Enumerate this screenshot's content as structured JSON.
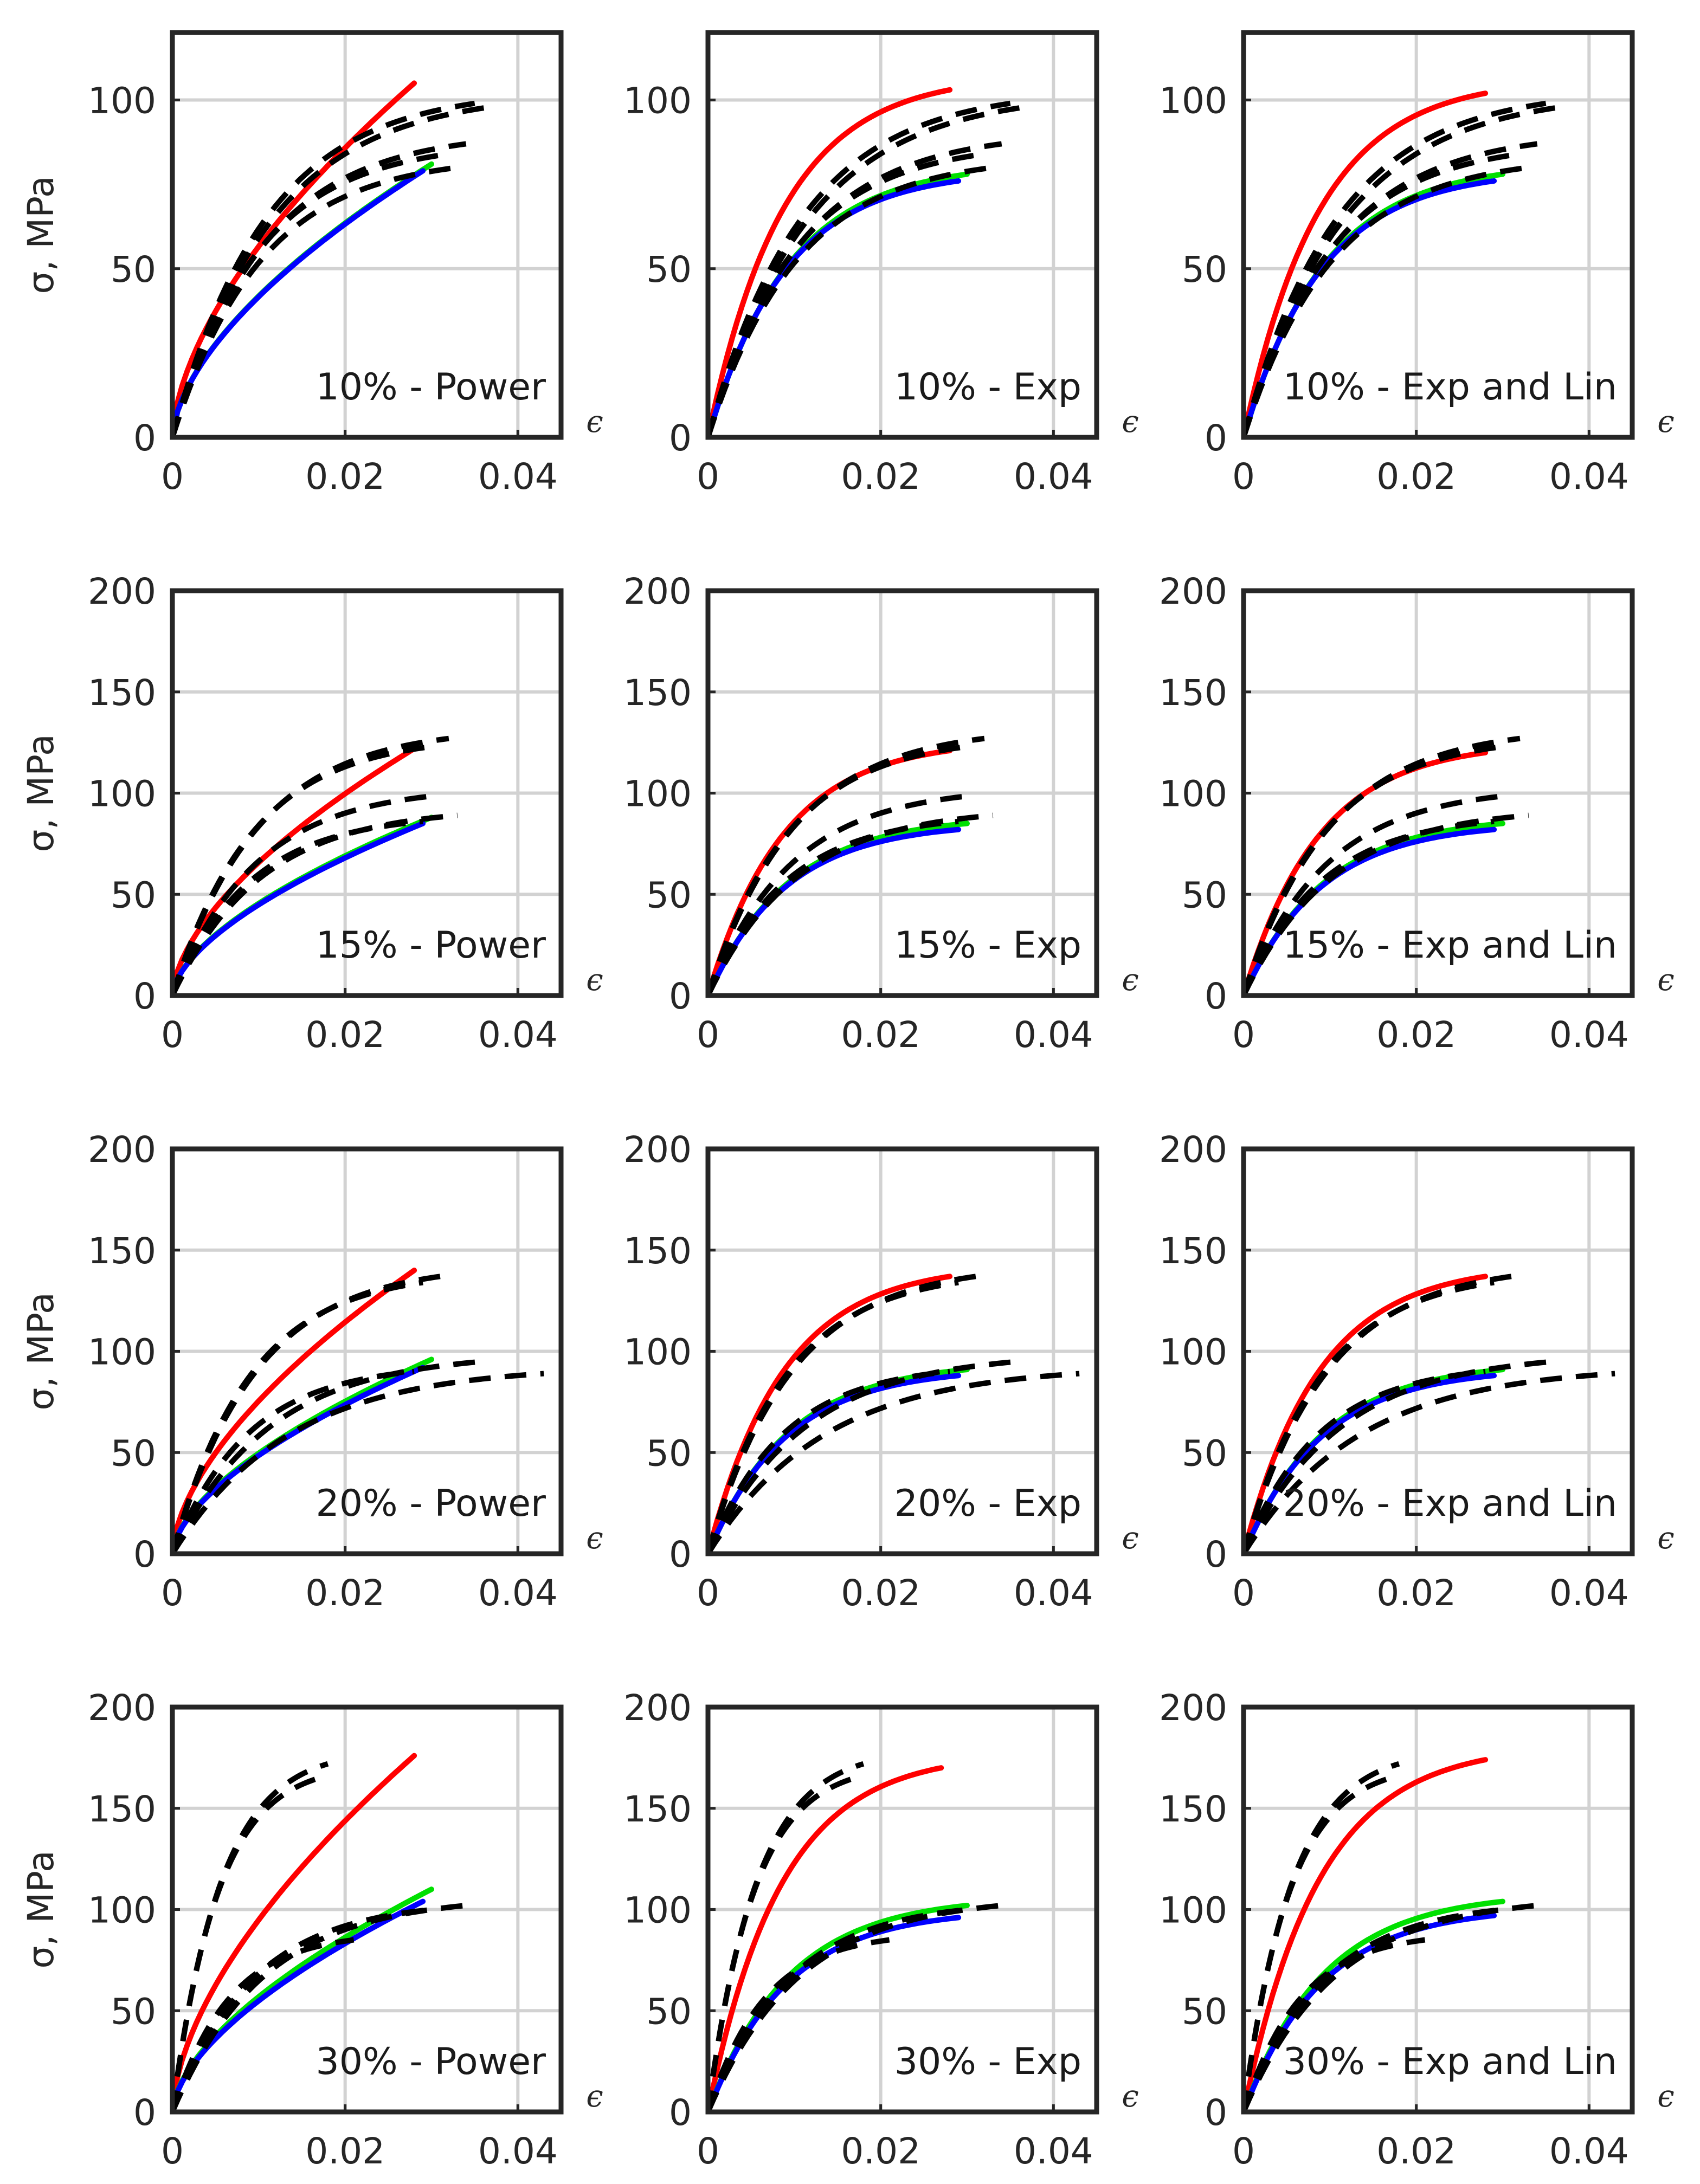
{
  "colors": {
    "red_series": "#ff0000",
    "green_series": "#00e000",
    "blue_series": "#0000ff",
    "experimental": "#000000",
    "axes": "#262626",
    "grid": "#d2d2d2"
  },
  "chart_data": [
    {
      "type": "line",
      "row": 0,
      "col": 0,
      "annotation": "10% - Power",
      "xlabel": "ϵ",
      "ylabel": "σ, MPa",
      "xlim": [
        0,
        0.045
      ],
      "ylim": [
        0,
        120
      ],
      "xticks": [
        0,
        0.02,
        0.04
      ],
      "xtick_labels": [
        "0",
        "0.02",
        "0.04"
      ],
      "yticks": [
        0,
        50,
        100
      ],
      "ytick_labels": [
        "0",
        "50",
        "100"
      ],
      "grid": true,
      "series": [
        {
          "name": "red",
          "model": "power",
          "xmax": 0.028,
          "ymax": 105
        },
        {
          "name": "green",
          "model": "power",
          "xmax": 0.03,
          "ymax": 81
        },
        {
          "name": "blue",
          "model": "power",
          "xmax": 0.029,
          "ymax": 79
        },
        {
          "name": "experimental",
          "model": "exp",
          "xmax": 0.035,
          "ymax": 99
        },
        {
          "name": "experimental",
          "model": "exp",
          "xmax": 0.037,
          "ymax": 98
        },
        {
          "name": "experimental",
          "model": "exp",
          "xmax": 0.034,
          "ymax": 87
        },
        {
          "name": "experimental",
          "model": "exp",
          "xmax": 0.032,
          "ymax": 84
        },
        {
          "name": "experimental",
          "model": "exp",
          "xmax": 0.033,
          "ymax": 80
        }
      ]
    },
    {
      "type": "line",
      "row": 0,
      "col": 1,
      "annotation": "10% - Exp",
      "xlabel": "ϵ",
      "ylabel": "",
      "xlim": [
        0,
        0.045
      ],
      "ylim": [
        0,
        120
      ],
      "xticks": [
        0,
        0.02,
        0.04
      ],
      "xtick_labels": [
        "0",
        "0.02",
        "0.04"
      ],
      "yticks": [
        0,
        50,
        100
      ],
      "ytick_labels": [
        "0",
        "50",
        "100"
      ],
      "grid": true,
      "series": [
        {
          "name": "red",
          "model": "exp",
          "xmax": 0.028,
          "ymax": 103
        },
        {
          "name": "green",
          "model": "exp",
          "xmax": 0.03,
          "ymax": 78
        },
        {
          "name": "blue",
          "model": "exp",
          "xmax": 0.029,
          "ymax": 76
        },
        {
          "name": "experimental",
          "model": "exp",
          "xmax": 0.035,
          "ymax": 99
        },
        {
          "name": "experimental",
          "model": "exp",
          "xmax": 0.037,
          "ymax": 98
        },
        {
          "name": "experimental",
          "model": "exp",
          "xmax": 0.034,
          "ymax": 87
        },
        {
          "name": "experimental",
          "model": "exp",
          "xmax": 0.032,
          "ymax": 84
        },
        {
          "name": "experimental",
          "model": "exp",
          "xmax": 0.033,
          "ymax": 80
        }
      ]
    },
    {
      "type": "line",
      "row": 0,
      "col": 2,
      "annotation": "10% - Exp and Lin",
      "xlabel": "ϵ",
      "ylabel": "",
      "xlim": [
        0,
        0.045
      ],
      "ylim": [
        0,
        120
      ],
      "xticks": [
        0,
        0.02,
        0.04
      ],
      "xtick_labels": [
        "0",
        "0.02",
        "0.04"
      ],
      "yticks": [
        0,
        50,
        100
      ],
      "ytick_labels": [
        "0",
        "50",
        "100"
      ],
      "grid": true,
      "series": [
        {
          "name": "red",
          "model": "exp",
          "xmax": 0.028,
          "ymax": 102
        },
        {
          "name": "green",
          "model": "exp",
          "xmax": 0.03,
          "ymax": 78
        },
        {
          "name": "blue",
          "model": "exp",
          "xmax": 0.029,
          "ymax": 76
        },
        {
          "name": "experimental",
          "model": "exp",
          "xmax": 0.035,
          "ymax": 99
        },
        {
          "name": "experimental",
          "model": "exp",
          "xmax": 0.037,
          "ymax": 98
        },
        {
          "name": "experimental",
          "model": "exp",
          "xmax": 0.034,
          "ymax": 87
        },
        {
          "name": "experimental",
          "model": "exp",
          "xmax": 0.032,
          "ymax": 84
        },
        {
          "name": "experimental",
          "model": "exp",
          "xmax": 0.033,
          "ymax": 80
        }
      ]
    },
    {
      "type": "line",
      "row": 1,
      "col": 0,
      "annotation": "15% - Power",
      "xlabel": "ϵ",
      "ylabel": "σ, MPa",
      "xlim": [
        0,
        0.045
      ],
      "ylim": [
        0,
        200
      ],
      "xticks": [
        0,
        0.02,
        0.04
      ],
      "xtick_labels": [
        "0",
        "0.02",
        "0.04"
      ],
      "yticks": [
        0,
        50,
        100,
        150,
        200
      ],
      "ytick_labels": [
        "0",
        "50",
        "100",
        "150",
        "200"
      ],
      "grid": true,
      "series": [
        {
          "name": "red",
          "model": "power",
          "xmax": 0.028,
          "ymax": 122
        },
        {
          "name": "green",
          "model": "power",
          "xmax": 0.03,
          "ymax": 88
        },
        {
          "name": "blue",
          "model": "power",
          "xmax": 0.029,
          "ymax": 85
        },
        {
          "name": "experimental",
          "model": "exp",
          "xmax": 0.032,
          "ymax": 127
        },
        {
          "name": "experimental",
          "model": "exp",
          "xmax": 0.03,
          "ymax": 123
        },
        {
          "name": "experimental",
          "model": "exp",
          "xmax": 0.031,
          "ymax": 99
        },
        {
          "name": "experimental",
          "model": "exp",
          "xmax": 0.033,
          "ymax": 89
        },
        {
          "name": "experimental",
          "model": "exp",
          "xmax": 0.029,
          "ymax": 86
        }
      ]
    },
    {
      "type": "line",
      "row": 1,
      "col": 1,
      "annotation": "15% - Exp",
      "xlabel": "ϵ",
      "ylabel": "",
      "xlim": [
        0,
        0.045
      ],
      "ylim": [
        0,
        200
      ],
      "xticks": [
        0,
        0.02,
        0.04
      ],
      "xtick_labels": [
        "0",
        "0.02",
        "0.04"
      ],
      "yticks": [
        0,
        50,
        100,
        150,
        200
      ],
      "ytick_labels": [
        "0",
        "50",
        "100",
        "150",
        "200"
      ],
      "grid": true,
      "series": [
        {
          "name": "red",
          "model": "exp",
          "xmax": 0.028,
          "ymax": 121
        },
        {
          "name": "green",
          "model": "exp",
          "xmax": 0.03,
          "ymax": 85
        },
        {
          "name": "blue",
          "model": "exp",
          "xmax": 0.029,
          "ymax": 82
        },
        {
          "name": "experimental",
          "model": "exp",
          "xmax": 0.032,
          "ymax": 127
        },
        {
          "name": "experimental",
          "model": "exp",
          "xmax": 0.03,
          "ymax": 123
        },
        {
          "name": "experimental",
          "model": "exp",
          "xmax": 0.031,
          "ymax": 99
        },
        {
          "name": "experimental",
          "model": "exp",
          "xmax": 0.033,
          "ymax": 89
        },
        {
          "name": "experimental",
          "model": "exp",
          "xmax": 0.029,
          "ymax": 86
        }
      ]
    },
    {
      "type": "line",
      "row": 1,
      "col": 2,
      "annotation": "15% - Exp and Lin",
      "xlabel": "ϵ",
      "ylabel": "",
      "xlim": [
        0,
        0.045
      ],
      "ylim": [
        0,
        200
      ],
      "xticks": [
        0,
        0.02,
        0.04
      ],
      "xtick_labels": [
        "0",
        "0.02",
        "0.04"
      ],
      "yticks": [
        0,
        50,
        100,
        150,
        200
      ],
      "ytick_labels": [
        "0",
        "50",
        "100",
        "150",
        "200"
      ],
      "grid": true,
      "series": [
        {
          "name": "red",
          "model": "exp",
          "xmax": 0.028,
          "ymax": 120
        },
        {
          "name": "green",
          "model": "exp",
          "xmax": 0.03,
          "ymax": 85
        },
        {
          "name": "blue",
          "model": "exp",
          "xmax": 0.029,
          "ymax": 82
        },
        {
          "name": "experimental",
          "model": "exp",
          "xmax": 0.032,
          "ymax": 127
        },
        {
          "name": "experimental",
          "model": "exp",
          "xmax": 0.03,
          "ymax": 123
        },
        {
          "name": "experimental",
          "model": "exp",
          "xmax": 0.031,
          "ymax": 99
        },
        {
          "name": "experimental",
          "model": "exp",
          "xmax": 0.033,
          "ymax": 89
        },
        {
          "name": "experimental",
          "model": "exp",
          "xmax": 0.029,
          "ymax": 86
        }
      ]
    },
    {
      "type": "line",
      "row": 2,
      "col": 0,
      "annotation": "20% - Power",
      "xlabel": "ϵ",
      "ylabel": "σ, MPa",
      "xlim": [
        0,
        0.045
      ],
      "ylim": [
        0,
        200
      ],
      "xticks": [
        0,
        0.02,
        0.04
      ],
      "xtick_labels": [
        "0",
        "0.02",
        "0.04"
      ],
      "yticks": [
        0,
        50,
        100,
        150,
        200
      ],
      "ytick_labels": [
        "0",
        "50",
        "100",
        "150",
        "200"
      ],
      "grid": true,
      "series": [
        {
          "name": "red",
          "model": "power",
          "xmax": 0.028,
          "ymax": 140
        },
        {
          "name": "green",
          "model": "power",
          "xmax": 0.03,
          "ymax": 96
        },
        {
          "name": "blue",
          "model": "power",
          "xmax": 0.029,
          "ymax": 92
        },
        {
          "name": "experimental",
          "model": "exp",
          "xmax": 0.031,
          "ymax": 137
        },
        {
          "name": "experimental",
          "model": "exp",
          "xmax": 0.029,
          "ymax": 134
        },
        {
          "name": "experimental",
          "model": "exp",
          "xmax": 0.036,
          "ymax": 95
        },
        {
          "name": "experimental",
          "model": "exp",
          "xmax": 0.043,
          "ymax": 89
        },
        {
          "name": "experimental",
          "model": "exp",
          "xmax": 0.028,
          "ymax": 90
        }
      ]
    },
    {
      "type": "line",
      "row": 2,
      "col": 1,
      "annotation": "20% - Exp",
      "xlabel": "ϵ",
      "ylabel": "",
      "xlim": [
        0,
        0.045
      ],
      "ylim": [
        0,
        200
      ],
      "xticks": [
        0,
        0.02,
        0.04
      ],
      "xtick_labels": [
        "0",
        "0.02",
        "0.04"
      ],
      "yticks": [
        0,
        50,
        100,
        150,
        200
      ],
      "ytick_labels": [
        "0",
        "50",
        "100",
        "150",
        "200"
      ],
      "grid": true,
      "series": [
        {
          "name": "red",
          "model": "exp",
          "xmax": 0.028,
          "ymax": 137
        },
        {
          "name": "green",
          "model": "exp",
          "xmax": 0.03,
          "ymax": 91
        },
        {
          "name": "blue",
          "model": "exp",
          "xmax": 0.029,
          "ymax": 88
        },
        {
          "name": "experimental",
          "model": "exp",
          "xmax": 0.031,
          "ymax": 137
        },
        {
          "name": "experimental",
          "model": "exp",
          "xmax": 0.029,
          "ymax": 134
        },
        {
          "name": "experimental",
          "model": "exp",
          "xmax": 0.036,
          "ymax": 95
        },
        {
          "name": "experimental",
          "model": "exp",
          "xmax": 0.043,
          "ymax": 89
        },
        {
          "name": "experimental",
          "model": "exp",
          "xmax": 0.028,
          "ymax": 90
        }
      ]
    },
    {
      "type": "line",
      "row": 2,
      "col": 2,
      "annotation": "20% - Exp and Lin",
      "xlabel": "ϵ",
      "ylabel": "",
      "xlim": [
        0,
        0.045
      ],
      "ylim": [
        0,
        200
      ],
      "xticks": [
        0,
        0.02,
        0.04
      ],
      "xtick_labels": [
        "0",
        "0.02",
        "0.04"
      ],
      "yticks": [
        0,
        50,
        100,
        150,
        200
      ],
      "ytick_labels": [
        "0",
        "50",
        "100",
        "150",
        "200"
      ],
      "grid": true,
      "series": [
        {
          "name": "red",
          "model": "exp",
          "xmax": 0.028,
          "ymax": 137
        },
        {
          "name": "green",
          "model": "exp",
          "xmax": 0.03,
          "ymax": 91
        },
        {
          "name": "blue",
          "model": "exp",
          "xmax": 0.029,
          "ymax": 88
        },
        {
          "name": "experimental",
          "model": "exp",
          "xmax": 0.031,
          "ymax": 137
        },
        {
          "name": "experimental",
          "model": "exp",
          "xmax": 0.029,
          "ymax": 134
        },
        {
          "name": "experimental",
          "model": "exp",
          "xmax": 0.036,
          "ymax": 95
        },
        {
          "name": "experimental",
          "model": "exp",
          "xmax": 0.043,
          "ymax": 89
        },
        {
          "name": "experimental",
          "model": "exp",
          "xmax": 0.028,
          "ymax": 90
        }
      ]
    },
    {
      "type": "line",
      "row": 3,
      "col": 0,
      "annotation": "30% - Power",
      "xlabel": "ϵ",
      "ylabel": "σ, MPa",
      "xlim": [
        0,
        0.045
      ],
      "ylim": [
        0,
        200
      ],
      "xticks": [
        0,
        0.02,
        0.04
      ],
      "xtick_labels": [
        "0",
        "0.02",
        "0.04"
      ],
      "yticks": [
        0,
        50,
        100,
        150,
        200
      ],
      "ytick_labels": [
        "0",
        "50",
        "100",
        "150",
        "200"
      ],
      "grid": true,
      "series": [
        {
          "name": "red",
          "model": "power",
          "xmax": 0.028,
          "ymax": 176
        },
        {
          "name": "green",
          "model": "power",
          "xmax": 0.03,
          "ymax": 110
        },
        {
          "name": "blue",
          "model": "power",
          "xmax": 0.029,
          "ymax": 104
        },
        {
          "name": "experimental",
          "model": "exp",
          "xmax": 0.018,
          "ymax": 172
        },
        {
          "name": "experimental",
          "model": "exp",
          "xmax": 0.017,
          "ymax": 165
        },
        {
          "name": "experimental",
          "model": "exp",
          "xmax": 0.034,
          "ymax": 102
        },
        {
          "name": "experimental",
          "model": "exp",
          "xmax": 0.03,
          "ymax": 100
        },
        {
          "name": "experimental",
          "model": "exp",
          "xmax": 0.021,
          "ymax": 85
        }
      ]
    },
    {
      "type": "line",
      "row": 3,
      "col": 1,
      "annotation": "30% - Exp",
      "xlabel": "ϵ",
      "ylabel": "",
      "xlim": [
        0,
        0.045
      ],
      "ylim": [
        0,
        200
      ],
      "xticks": [
        0,
        0.02,
        0.04
      ],
      "xtick_labels": [
        "0",
        "0.02",
        "0.04"
      ],
      "yticks": [
        0,
        50,
        100,
        150,
        200
      ],
      "ytick_labels": [
        "0",
        "50",
        "100",
        "150",
        "200"
      ],
      "grid": true,
      "series": [
        {
          "name": "red",
          "model": "exp",
          "xmax": 0.027,
          "ymax": 170
        },
        {
          "name": "green",
          "model": "exp",
          "xmax": 0.03,
          "ymax": 102
        },
        {
          "name": "blue",
          "model": "exp",
          "xmax": 0.029,
          "ymax": 96
        },
        {
          "name": "experimental",
          "model": "exp",
          "xmax": 0.018,
          "ymax": 172
        },
        {
          "name": "experimental",
          "model": "exp",
          "xmax": 0.017,
          "ymax": 165
        },
        {
          "name": "experimental",
          "model": "exp",
          "xmax": 0.034,
          "ymax": 102
        },
        {
          "name": "experimental",
          "model": "exp",
          "xmax": 0.03,
          "ymax": 100
        },
        {
          "name": "experimental",
          "model": "exp",
          "xmax": 0.021,
          "ymax": 85
        }
      ]
    },
    {
      "type": "line",
      "row": 3,
      "col": 2,
      "annotation": "30% - Exp and Lin",
      "xlabel": "ϵ",
      "ylabel": "",
      "xlim": [
        0,
        0.045
      ],
      "ylim": [
        0,
        200
      ],
      "xticks": [
        0,
        0.02,
        0.04
      ],
      "xtick_labels": [
        "0",
        "0.02",
        "0.04"
      ],
      "yticks": [
        0,
        50,
        100,
        150,
        200
      ],
      "ytick_labels": [
        "0",
        "50",
        "100",
        "150",
        "200"
      ],
      "grid": true,
      "series": [
        {
          "name": "red",
          "model": "exp",
          "xmax": 0.028,
          "ymax": 174
        },
        {
          "name": "green",
          "model": "exp",
          "xmax": 0.03,
          "ymax": 104
        },
        {
          "name": "blue",
          "model": "exp",
          "xmax": 0.029,
          "ymax": 97
        },
        {
          "name": "experimental",
          "model": "exp",
          "xmax": 0.018,
          "ymax": 172
        },
        {
          "name": "experimental",
          "model": "exp",
          "xmax": 0.017,
          "ymax": 165
        },
        {
          "name": "experimental",
          "model": "exp",
          "xmax": 0.034,
          "ymax": 102
        },
        {
          "name": "experimental",
          "model": "exp",
          "xmax": 0.03,
          "ymax": 100
        },
        {
          "name": "experimental",
          "model": "exp",
          "xmax": 0.021,
          "ymax": 85
        }
      ]
    }
  ]
}
